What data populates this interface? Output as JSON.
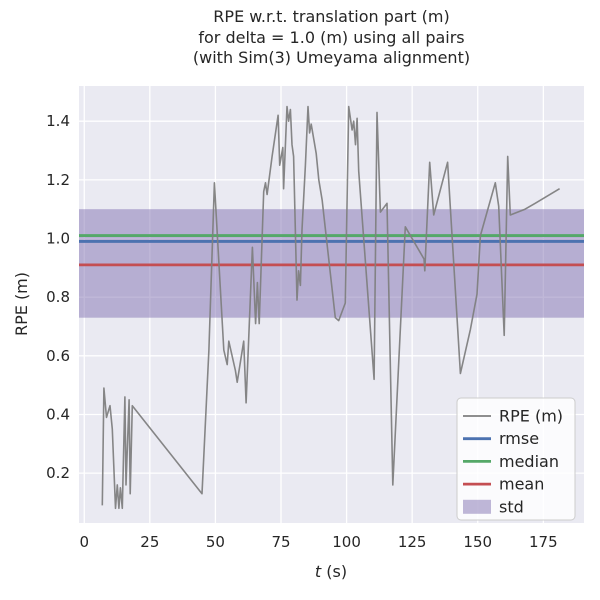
{
  "title": {
    "line1": "RPE w.r.t. translation part (m)",
    "line2": "for delta = 1.0 (m) using all pairs",
    "line3": "(with Sim(3) Umeyama alignment)"
  },
  "chart_data": {
    "type": "line",
    "title": "RPE w.r.t. translation part (m) for delta = 1.0 (m) using all pairs (with Sim(3) Umeyama alignment)",
    "xlabel": "t (s)",
    "xlabel_math": "t",
    "xlabel_rest": " (s)",
    "ylabel": "RPE (m)",
    "xlim": [
      -2,
      190.5
    ],
    "ylim": [
      0.03,
      1.52
    ],
    "grid": true,
    "x_ticks": [
      0,
      25,
      50,
      75,
      100,
      125,
      150,
      175
    ],
    "x_tick_labels": [
      "0",
      "25",
      "50",
      "75",
      "100",
      "125",
      "150",
      "175"
    ],
    "y_ticks": [
      0.2,
      0.4,
      0.6,
      0.8,
      1.0,
      1.2,
      1.4
    ],
    "y_tick_labels": [
      "0.2",
      "0.4",
      "0.6",
      "0.8",
      "1.0",
      "1.2",
      "1.4"
    ],
    "series": [
      {
        "name": "RPE (m)",
        "color": "#7f7f7f",
        "points": [
          [
            6.9,
            0.09
          ],
          [
            7.5,
            0.49
          ],
          [
            8.5,
            0.39
          ],
          [
            9.8,
            0.43
          ],
          [
            10.7,
            0.35
          ],
          [
            11.9,
            0.08
          ],
          [
            12.6,
            0.16
          ],
          [
            13.2,
            0.08
          ],
          [
            13.8,
            0.15
          ],
          [
            14.5,
            0.08
          ],
          [
            15.5,
            0.46
          ],
          [
            15.9,
            0.16
          ],
          [
            17.1,
            0.45
          ],
          [
            17.5,
            0.13
          ],
          [
            18.3,
            0.43
          ],
          [
            44.9,
            0.13
          ],
          [
            47.5,
            0.62
          ],
          [
            49.6,
            1.19
          ],
          [
            53.2,
            0.62
          ],
          [
            54.5,
            0.57
          ],
          [
            55.1,
            0.65
          ],
          [
            57.6,
            0.55
          ],
          [
            58.3,
            0.51
          ],
          [
            60.8,
            0.65
          ],
          [
            61.7,
            0.44
          ],
          [
            64.1,
            0.97
          ],
          [
            65.3,
            0.71
          ],
          [
            66.0,
            0.85
          ],
          [
            66.7,
            0.71
          ],
          [
            68.4,
            1.16
          ],
          [
            69.1,
            1.19
          ],
          [
            69.7,
            1.15
          ],
          [
            71.6,
            1.28
          ],
          [
            73.9,
            1.42
          ],
          [
            74.5,
            1.25
          ],
          [
            75.7,
            1.31
          ],
          [
            76.0,
            1.17
          ],
          [
            77.3,
            1.45
          ],
          [
            77.9,
            1.4
          ],
          [
            78.6,
            1.44
          ],
          [
            79.2,
            1.32
          ],
          [
            79.8,
            1.28
          ],
          [
            81.1,
            0.79
          ],
          [
            81.7,
            0.89
          ],
          [
            82.4,
            0.84
          ],
          [
            83.0,
            1.03
          ],
          [
            84.3,
            1.25
          ],
          [
            85.3,
            1.45
          ],
          [
            85.9,
            1.36
          ],
          [
            86.5,
            1.39
          ],
          [
            88.4,
            1.29
          ],
          [
            89.4,
            1.2
          ],
          [
            90.7,
            1.13
          ],
          [
            91.3,
            1.08
          ],
          [
            95.7,
            0.73
          ],
          [
            97.0,
            0.72
          ],
          [
            99.5,
            0.78
          ],
          [
            100.8,
            1.45
          ],
          [
            102.1,
            1.37
          ],
          [
            102.7,
            1.4
          ],
          [
            103.4,
            1.32
          ],
          [
            104.0,
            1.41
          ],
          [
            104.6,
            1.23
          ],
          [
            110.5,
            0.52
          ],
          [
            111.6,
            1.43
          ],
          [
            112.9,
            1.09
          ],
          [
            115.4,
            1.12
          ],
          [
            117.6,
            0.16
          ],
          [
            122.4,
            1.04
          ],
          [
            129.5,
            0.93
          ],
          [
            129.8,
            0.89
          ],
          [
            131.7,
            1.26
          ],
          [
            133.2,
            1.08
          ],
          [
            138.5,
            1.26
          ],
          [
            143.4,
            0.54
          ],
          [
            147.2,
            0.69
          ],
          [
            149.7,
            0.81
          ],
          [
            151.0,
            1.01
          ],
          [
            156.7,
            1.19
          ],
          [
            158.0,
            1.11
          ],
          [
            160.1,
            0.67
          ],
          [
            161.4,
            1.28
          ],
          [
            162.4,
            1.08
          ],
          [
            168.0,
            1.1
          ],
          [
            171.9,
            1.12
          ],
          [
            181.2,
            1.17
          ]
        ]
      }
    ],
    "stat_lines": [
      {
        "name": "rmse",
        "value": 0.99,
        "color": "#4c72b0"
      },
      {
        "name": "median",
        "value": 1.01,
        "color": "#55a868"
      },
      {
        "name": "mean",
        "value": 0.91,
        "color": "#c44e52"
      }
    ],
    "std_band": {
      "name": "std",
      "low": 0.73,
      "high": 1.1,
      "color": "#8172b2",
      "opacity": 0.5
    },
    "legend": {
      "position": "lower right",
      "entries": [
        {
          "label": "RPE (m)",
          "swatch": "line",
          "color": "#7f7f7f"
        },
        {
          "label": "rmse",
          "swatch": "line",
          "color": "#4c72b0"
        },
        {
          "label": "median",
          "swatch": "line",
          "color": "#55a868"
        },
        {
          "label": "mean",
          "swatch": "line",
          "color": "#c44e52"
        },
        {
          "label": "std",
          "swatch": "patch",
          "color": "#8172b2"
        }
      ]
    }
  },
  "style_colors": {
    "axes_background": "#eaeaf2",
    "grid": "#ffffff",
    "text": "#262626",
    "legend_border": "#cccccc",
    "legend_background": "#ffffff"
  }
}
